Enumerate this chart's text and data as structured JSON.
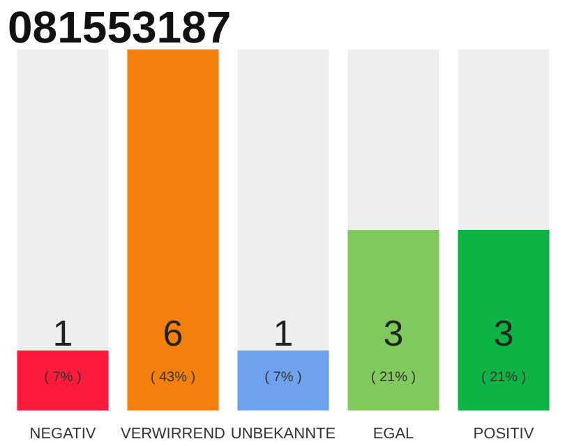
{
  "chart_data": {
    "type": "bar",
    "title": "081553187",
    "stacked": true,
    "categories": [
      "NEGATIV",
      "VERWIRREND",
      "UNBEKANNTE",
      "EGAL",
      "POSITIV"
    ],
    "series": [
      {
        "colors": [
          "#fe1a3a",
          "#f37f0c",
          "#6ea2ec",
          "#80c95d",
          "#0db444"
        ],
        "values": [
          1,
          6,
          1,
          3,
          3
        ],
        "value_labels": [
          "1",
          "6",
          "1",
          "3",
          "3"
        ]
      },
      {
        "color": "#eeeeee",
        "values": [
          5,
          0,
          5,
          3,
          3
        ]
      }
    ],
    "annotations": [
      "( 7% )",
      "( 43% )",
      "( 7% )",
      "( 21% )",
      "( 21% )"
    ]
  }
}
